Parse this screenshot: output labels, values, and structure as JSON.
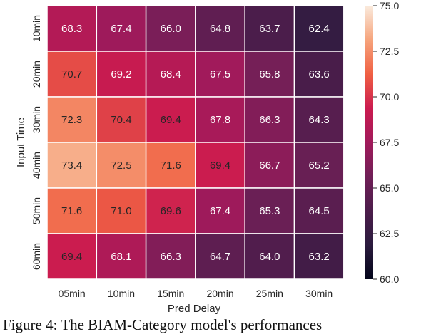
{
  "chart_data": {
    "type": "heatmap",
    "xlabel": "Pred Delay",
    "ylabel": "Input Time",
    "x_categories": [
      "05min",
      "10min",
      "15min",
      "20min",
      "25min",
      "30min"
    ],
    "y_categories": [
      "10min",
      "20min",
      "30min",
      "40min",
      "50min",
      "60min"
    ],
    "values": [
      [
        68.3,
        67.4,
        66.0,
        64.8,
        63.7,
        62.4
      ],
      [
        70.7,
        69.2,
        68.4,
        67.5,
        65.8,
        63.6
      ],
      [
        72.3,
        70.4,
        69.4,
        67.8,
        66.3,
        64.3
      ],
      [
        73.4,
        72.5,
        71.6,
        69.4,
        66.7,
        65.2
      ],
      [
        71.6,
        71.0,
        69.6,
        67.4,
        65.3,
        64.5
      ],
      [
        69.4,
        68.1,
        66.3,
        64.7,
        64.0,
        63.2
      ]
    ],
    "colorbar": {
      "min": 60.0,
      "max": 75.0,
      "ticks": [
        "60.0",
        "62.5",
        "65.0",
        "67.5",
        "70.0",
        "72.5",
        "75.0"
      ],
      "colormap": "rocket",
      "low_color": "#03051a",
      "high_color": "#faebdd"
    }
  },
  "caption": "Figure 4: The BIAM-Category model's performances"
}
